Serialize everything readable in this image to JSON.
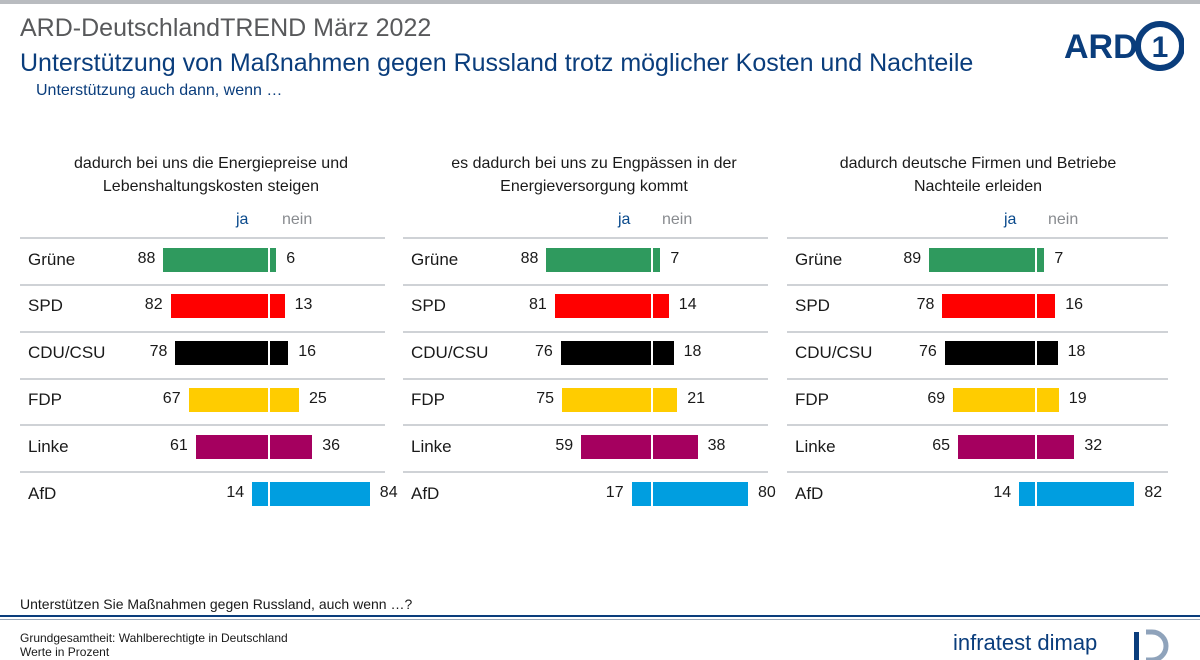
{
  "header": {
    "kicker": "ARD-DeutschlandTREND März 2022",
    "title": "Unterstützung von Maßnahmen gegen Russland trotz möglicher Kosten und Nachteile",
    "subtitle": "Unterstützung auch dann, wenn …"
  },
  "logo": {
    "text": "ARD",
    "digit": "1"
  },
  "colors": {
    "Grüne": "#2f9a5e",
    "SPD": "#ff0000",
    "CDU/CSU": "#000000",
    "FDP": "#ffcc00",
    "Linke": "#a5005f",
    "AfD": "#009ee0",
    "accent": "#0a3d7c"
  },
  "chart_data": [
    {
      "type": "bar",
      "title": "dadurch bei uns die Energiepreise und Lebenshaltungskosten steigen",
      "categories": [
        "Grüne",
        "SPD",
        "CDU/CSU",
        "FDP",
        "Linke",
        "AfD"
      ],
      "series": [
        {
          "name": "ja",
          "values": [
            88,
            82,
            78,
            67,
            61,
            14
          ]
        },
        {
          "name": "nein",
          "values": [
            6,
            13,
            16,
            25,
            36,
            84
          ]
        }
      ],
      "unit": "%"
    },
    {
      "type": "bar",
      "title": "es dadurch bei uns zu Engpässen in der Energieversorgung kommt",
      "categories": [
        "Grüne",
        "SPD",
        "CDU/CSU",
        "FDP",
        "Linke",
        "AfD"
      ],
      "series": [
        {
          "name": "ja",
          "values": [
            88,
            81,
            76,
            75,
            59,
            17
          ]
        },
        {
          "name": "nein",
          "values": [
            7,
            14,
            18,
            21,
            38,
            80
          ]
        }
      ],
      "unit": "%"
    },
    {
      "type": "bar",
      "title": "dadurch deutsche Firmen und Betriebe Nachteile erleiden",
      "categories": [
        "Grüne",
        "SPD",
        "CDU/CSU",
        "FDP",
        "Linke",
        "AfD"
      ],
      "series": [
        {
          "name": "ja",
          "values": [
            89,
            78,
            76,
            69,
            65,
            14
          ]
        },
        {
          "name": "nein",
          "values": [
            7,
            16,
            18,
            19,
            32,
            82
          ]
        }
      ],
      "unit": "%"
    }
  ],
  "footer": {
    "question": "Unterstützen Sie Maßnahmen gegen Russland, auch wenn …?",
    "base": "Grundgesamtheit: Wahlberechtigte in Deutschland",
    "unit": "Werte in Prozent",
    "institute": "infratest dimap"
  }
}
